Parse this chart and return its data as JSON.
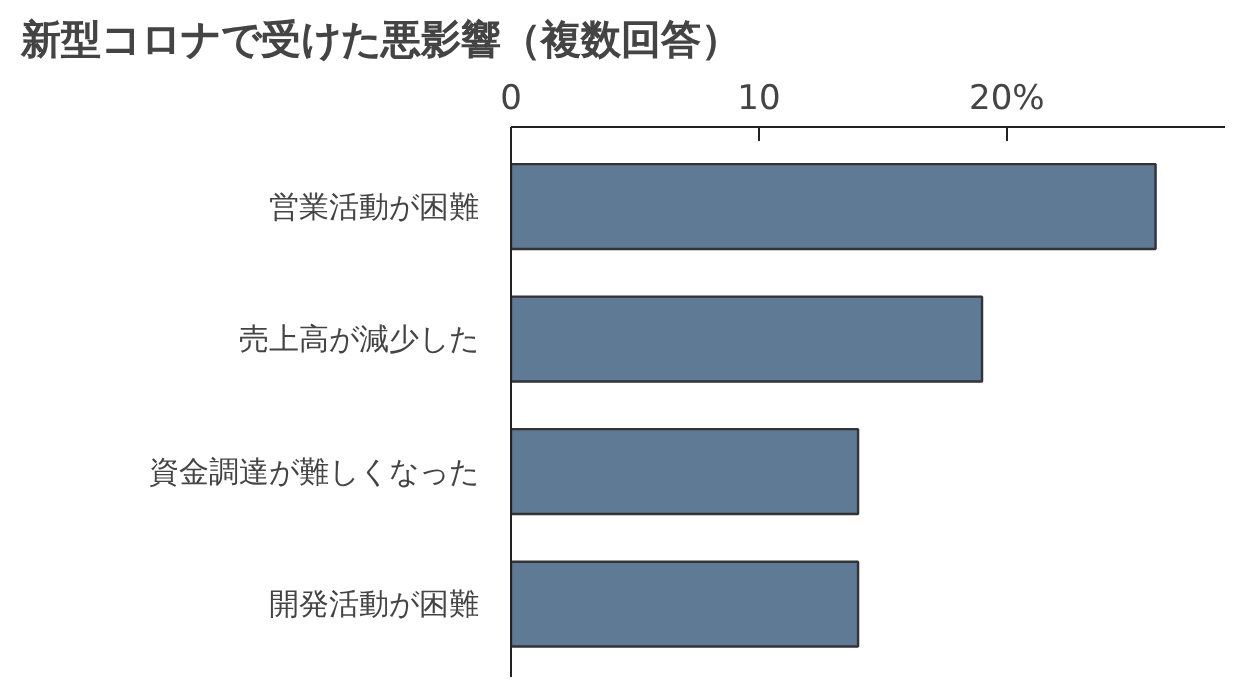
{
  "chart_data": {
    "type": "bar",
    "orientation": "horizontal",
    "title": "新型コロナで受けた悪影響（複数回答）",
    "categories": [
      "営業活動が困難",
      "売上高が減少した",
      "資金調達が難しくなった",
      "開発活動が困難"
    ],
    "values": [
      26,
      19,
      14,
      14
    ],
    "color": "#5f7a94",
    "xlim": [
      0,
      28.8
    ],
    "xticks": [
      0,
      10,
      {
        "value": 20,
        "label": "20%"
      }
    ],
    "grid": false
  }
}
